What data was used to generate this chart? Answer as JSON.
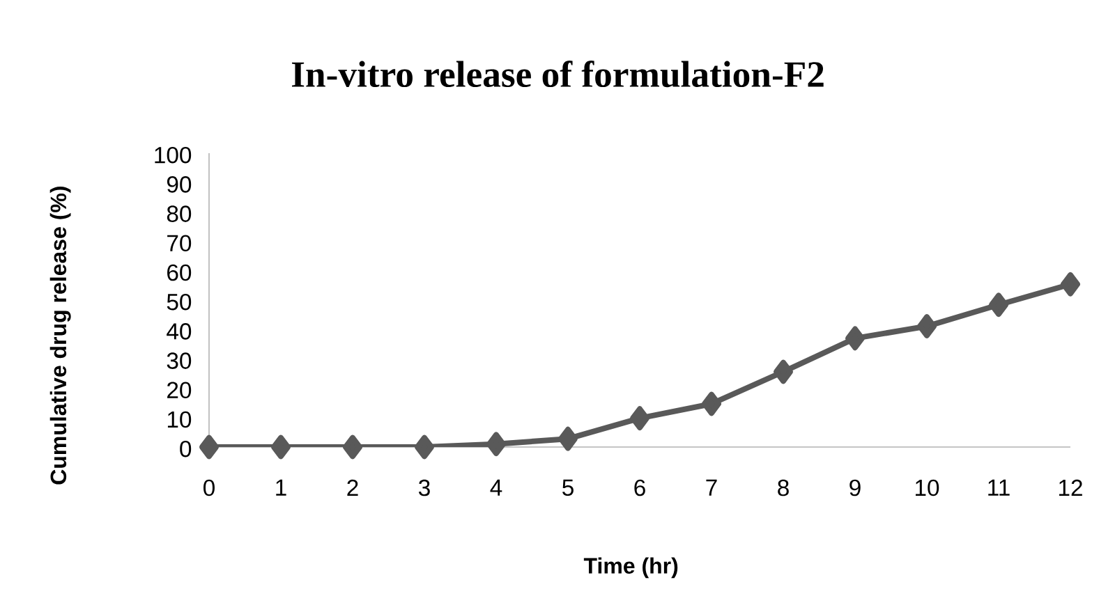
{
  "chart_data": {
    "type": "line",
    "title": "In-vitro release of formulation-F2",
    "xlabel": "Time (hr)",
    "ylabel": "Cumulative drug release (%)",
    "x": [
      0,
      1,
      2,
      3,
      4,
      5,
      6,
      7,
      8,
      9,
      10,
      11,
      12
    ],
    "series": [
      {
        "color": "#595959",
        "values": [
          0,
          0,
          0,
          0,
          1,
          2.8,
          9.8,
          14.7,
          25.6,
          37,
          41.1,
          48.4,
          55.4
        ]
      }
    ],
    "xlim": [
      0,
      12
    ],
    "xticks": [
      0,
      1,
      2,
      3,
      4,
      5,
      6,
      7,
      8,
      9,
      10,
      11,
      12
    ],
    "ylim": [
      0,
      100
    ],
    "yticks": [
      0,
      10,
      20,
      30,
      40,
      50,
      60,
      70,
      80,
      90,
      100
    ],
    "marker": "diamond",
    "line_style": "solid",
    "grid": false
  }
}
